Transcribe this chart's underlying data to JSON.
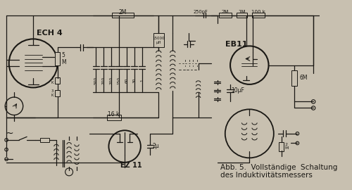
{
  "bg_color": "#c8c0b0",
  "fg_color": "#1a1814",
  "caption_line1": "Abb. 5.  Vollständige  Schaltung",
  "caption_line2": "des Induktivitätsmessers",
  "label_ECH4": "ECH 4",
  "label_EB11": "EB11",
  "label_EZ11": "EZ 11",
  "label_2M_top": "2M",
  "label_250pF": "250pF",
  "label_2M_r": "2M",
  "label_1M": "1M",
  "label_100k": "100 k",
  "label_5M": "5\nM",
  "label_6M": "6M",
  "label_10uF": "10μF",
  "label_16k": "16 k",
  "label_2u": "2μ",
  "label_tilde": "~",
  "cap_labels": [
    "500",
    "200",
    "200",
    "150",
    "60",
    "30",
    "1"
  ],
  "caption_fontsize": 7.5,
  "label_fontsize": 6.5,
  "small_fontsize": 5.5
}
